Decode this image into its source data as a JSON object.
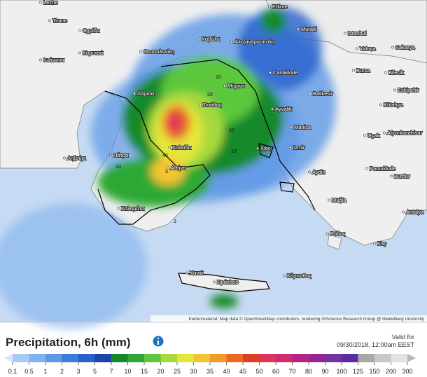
{
  "map": {
    "cities": [
      "Lezhe",
      "Tirane",
      "Οχρίδα",
      "Κορυτσά",
      "Ιωάννινα",
      "Θεσσαλονίκη",
      "Καβάλα",
      "Αλεξανδρούπολη",
      "Edirne",
      "Muratli",
      "Istanbul",
      "Sakarya",
      "Yalova",
      "Bursa",
      "Bilecik",
      "Eskişehir",
      "Kütahya",
      "Canakkale",
      "Balikesir",
      "Ayvalik",
      "Λάρισα",
      "Μύρινα",
      "Σκιάθος",
      "Χαλκίδα",
      "Αθήνα",
      "Πάτρα",
      "Ληξούρι",
      "Καλαμάτα",
      "Χίος",
      "Izmir",
      "Manisa",
      "Uşak",
      "Afyonkarahisar",
      "Aydin",
      "Pamukkale",
      "Burdur",
      "Muğla",
      "Ρόδος",
      "Antalya",
      "Kaş",
      "Χανιά",
      "Ηράκλειο",
      "Κάρπαθος"
    ],
    "contour_labels": [
      "10",
      "20",
      "10",
      "40",
      "10",
      "3",
      "10",
      "3"
    ],
    "attribution": "Kartenmaterial: Map data © OpenStreetMap contributors, rendering GIScience Research Group @ Heidelberg University"
  },
  "legend": {
    "title": "Precipitation, 6h (mm)",
    "valid_label": "Valid for",
    "valid_time": "09/30/2018, 12:00am EEST",
    "ticks": [
      0.1,
      0.5,
      1,
      2,
      3,
      5,
      7,
      10,
      15,
      20,
      25,
      30,
      35,
      40,
      45,
      50,
      60,
      70,
      80,
      90,
      100,
      125,
      150,
      200,
      300
    ],
    "colors": [
      "#a9cbf2",
      "#82b2ee",
      "#5e98e6",
      "#3c7cdc",
      "#2860cc",
      "#1a44a8",
      "#158a2a",
      "#2da836",
      "#5cc63c",
      "#a6d93c",
      "#e6e63a",
      "#f2c432",
      "#f29a2a",
      "#ea6c24",
      "#dc3e26",
      "#e0325a",
      "#d02a70",
      "#b42484",
      "#962496",
      "#7632a2",
      "#5c2ca2",
      "#a8a8a8",
      "#c8c8c8",
      "#e2e2e2"
    ],
    "below_color": "#d8e6f6",
    "above_color": "#b8b8b8"
  }
}
